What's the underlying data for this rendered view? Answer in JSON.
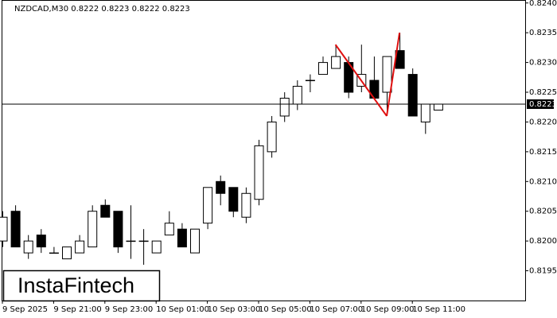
{
  "chart_data": {
    "type": "candlestick",
    "title": "NZDCAD,M30  0.8222 0.8223 0.8222 0.8223",
    "categories": [
      "9 Sep 2025",
      null,
      null,
      null,
      "9 Sep 21:00",
      null,
      null,
      null,
      "9 Sep 23:00",
      null,
      null,
      null,
      "10 Sep 01:00",
      null,
      null,
      null,
      "10 Sep 03:00",
      null,
      null,
      null,
      "10 Sep 05:00",
      null,
      null,
      null,
      "10 Sep 07:00",
      null,
      null,
      null,
      "10 Sep 09:00",
      null,
      null,
      null,
      "10 Sep 11:00",
      null,
      null
    ],
    "open": [
      0.82,
      0.8205,
      0.8198,
      0.8201,
      0.8198,
      0.8197,
      0.8198,
      0.8199,
      0.8206,
      0.8205,
      0.82,
      0.82,
      0.8198,
      0.8201,
      0.8202,
      0.8198,
      0.8203,
      0.821,
      0.8209,
      0.8204,
      0.8207,
      0.8215,
      0.8221,
      0.8223,
      0.8227,
      0.8228,
      0.8229,
      0.823,
      0.8226,
      0.8227,
      0.8225,
      0.8232,
      0.8228,
      0.822,
      0.8222
    ],
    "high": [
      0.8205,
      0.8206,
      0.8201,
      0.8202,
      0.8199,
      0.8199,
      0.8201,
      0.8206,
      0.8207,
      0.8205,
      0.8206,
      0.8202,
      0.82,
      0.8205,
      0.8203,
      0.8202,
      0.8209,
      0.8211,
      0.8209,
      0.8209,
      0.8217,
      0.8221,
      0.8225,
      0.8227,
      0.8228,
      0.8231,
      0.8233,
      0.8231,
      0.8233,
      0.8231,
      0.8231,
      0.8235,
      0.8229,
      0.8223,
      0.8223
    ],
    "low": [
      0.8199,
      0.8199,
      0.8197,
      0.8198,
      0.8198,
      0.8197,
      0.8198,
      0.8199,
      0.8204,
      0.8198,
      0.8197,
      0.8196,
      0.8198,
      0.8201,
      0.8199,
      0.8198,
      0.8202,
      0.8206,
      0.8204,
      0.8203,
      0.8206,
      0.8214,
      0.822,
      0.8222,
      0.8225,
      0.8228,
      0.8229,
      0.8224,
      0.8225,
      0.8224,
      0.8221,
      0.8229,
      0.8221,
      0.8218,
      0.8222
    ],
    "close": [
      0.8204,
      0.8199,
      0.82,
      0.8199,
      0.8198,
      0.8199,
      0.82,
      0.8205,
      0.8204,
      0.8199,
      0.82,
      0.82,
      0.82,
      0.8203,
      0.8199,
      0.8202,
      0.8209,
      0.8208,
      0.8205,
      0.8208,
      0.8216,
      0.822,
      0.8224,
      0.8226,
      0.8227,
      0.823,
      0.8231,
      0.8225,
      0.8228,
      0.8224,
      0.8231,
      0.8229,
      0.8221,
      0.8223,
      0.8223
    ],
    "ylim": [
      0.819,
      0.82405
    ],
    "yticks": [
      0.8195,
      {
        "value": 0.82,
        "label": "0.8200"
      },
      0.8205,
      {
        "value": 0.821,
        "label": "0.8210"
      },
      0.8215,
      {
        "value": 0.822,
        "label": "0.8220"
      },
      0.8225,
      {
        "value": 0.823,
        "label": "0.8230"
      },
      0.8235,
      {
        "value": 0.824,
        "label": "0.8240"
      }
    ],
    "current_price": 0.8223,
    "pattern": {
      "color": "#e01010",
      "x": [
        26,
        30,
        31
      ],
      "y": [
        0.8233,
        0.8221,
        0.8235
      ]
    },
    "logo": "InstaFintech"
  }
}
